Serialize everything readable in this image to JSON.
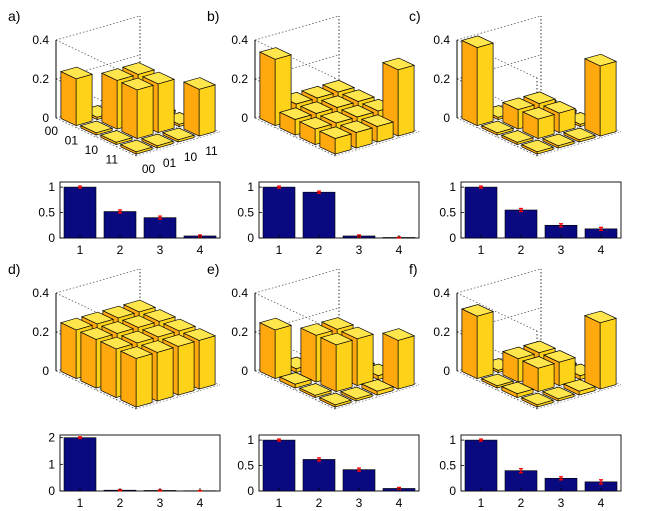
{
  "figure": {
    "description_labels_only": true
  },
  "chart_data": [
    {
      "panel": "a)",
      "bar3d": {
        "type": "bar3d",
        "zticks": [
          "0",
          "0.2",
          "0.4"
        ],
        "zlim": [
          0,
          0.4
        ],
        "row_ticks": [
          "00",
          "01",
          "10",
          "11"
        ],
        "col_ticks": [
          "00",
          "01",
          "10",
          "11"
        ],
        "matrix": [
          [
            0.24,
            0.0,
            0.0,
            0.0
          ],
          [
            0.0,
            0.25,
            0.25,
            0.0
          ],
          [
            0.0,
            0.25,
            0.25,
            0.0
          ],
          [
            0.0,
            0.0,
            0.0,
            0.24
          ]
        ]
      },
      "bar": {
        "type": "bar",
        "categories": [
          "1",
          "2",
          "3",
          "4"
        ],
        "values": [
          1.0,
          0.52,
          0.4,
          0.04
        ],
        "errors": [
          0.02,
          0.03,
          0.03,
          0.02
        ],
        "ylim": [
          0,
          1.1
        ],
        "yticks": [
          "0",
          "0.5",
          "1"
        ],
        "color": "#0a0a80",
        "error_color": "#ff0000"
      }
    },
    {
      "panel": "b)",
      "bar3d": {
        "type": "bar3d",
        "zticks": [
          "0",
          "0.2",
          "0.4"
        ],
        "zlim": [
          0,
          0.4
        ],
        "matrix": [
          [
            0.34,
            0.08,
            0.08,
            0.08
          ],
          [
            0.08,
            0.08,
            0.08,
            0.08
          ],
          [
            0.08,
            0.08,
            0.08,
            0.08
          ],
          [
            0.08,
            0.08,
            0.08,
            0.34
          ]
        ]
      },
      "bar": {
        "type": "bar",
        "categories": [
          "1",
          "2",
          "3",
          "4"
        ],
        "values": [
          1.0,
          0.9,
          0.04,
          0.01
        ],
        "errors": [
          0.02,
          0.02,
          0.02,
          0.01
        ],
        "ylim": [
          0,
          1.1
        ],
        "yticks": [
          "0",
          "0.5",
          "1"
        ],
        "color": "#0a0a80",
        "error_color": "#ff0000"
      }
    },
    {
      "panel": "c)",
      "bar3d": {
        "type": "bar3d",
        "zticks": [
          "0",
          "0.2",
          "0.4"
        ],
        "zlim": [
          0,
          0.4
        ],
        "matrix": [
          [
            0.4,
            0.0,
            0.0,
            0.0
          ],
          [
            0.0,
            0.1,
            0.1,
            0.0
          ],
          [
            0.0,
            0.1,
            0.1,
            0.0
          ],
          [
            0.0,
            0.0,
            0.0,
            0.36
          ]
        ]
      },
      "bar": {
        "type": "bar",
        "categories": [
          "1",
          "2",
          "3",
          "4"
        ],
        "values": [
          1.0,
          0.55,
          0.25,
          0.18
        ],
        "errors": [
          0.02,
          0.03,
          0.03,
          0.03
        ],
        "ylim": [
          0,
          1.1
        ],
        "yticks": [
          "0",
          "0.5",
          "1"
        ],
        "color": "#0a0a80",
        "error_color": "#ff0000"
      }
    },
    {
      "panel": "d)",
      "bar3d": {
        "type": "bar3d",
        "zticks": [
          "0",
          "0.2",
          "0.4"
        ],
        "zlim": [
          0,
          0.4
        ],
        "matrix": [
          [
            0.25,
            0.25,
            0.25,
            0.25
          ],
          [
            0.25,
            0.25,
            0.25,
            0.25
          ],
          [
            0.25,
            0.25,
            0.25,
            0.25
          ],
          [
            0.25,
            0.25,
            0.25,
            0.25
          ]
        ]
      },
      "bar": {
        "type": "bar",
        "categories": [
          "1",
          "2",
          "3",
          "4"
        ],
        "values": [
          2.0,
          0.03,
          0.02,
          0.01
        ],
        "errors": [
          0.03,
          0.02,
          0.02,
          0.01
        ],
        "ylim": [
          0,
          2.1
        ],
        "yticks": [
          "0",
          "1",
          "2"
        ],
        "color": "#0a0a80",
        "error_color": "#ff0000"
      }
    },
    {
      "panel": "e)",
      "bar3d": {
        "type": "bar3d",
        "zticks": [
          "0",
          "0.2",
          "0.4"
        ],
        "zlim": [
          0,
          0.4
        ],
        "matrix": [
          [
            0.25,
            0.02,
            0.0,
            0.0
          ],
          [
            0.02,
            0.24,
            0.24,
            0.0
          ],
          [
            0.0,
            0.24,
            0.24,
            0.02
          ],
          [
            0.0,
            0.0,
            0.02,
            0.25
          ]
        ]
      },
      "bar": {
        "type": "bar",
        "categories": [
          "1",
          "2",
          "3",
          "4"
        ],
        "values": [
          1.0,
          0.62,
          0.42,
          0.05
        ],
        "errors": [
          0.02,
          0.03,
          0.03,
          0.02
        ],
        "ylim": [
          0,
          1.1
        ],
        "yticks": [
          "0",
          "0.5",
          "1"
        ],
        "color": "#0a0a80",
        "error_color": "#ff0000"
      }
    },
    {
      "panel": "f)",
      "bar3d": {
        "type": "bar3d",
        "zticks": [
          "0",
          "0.2",
          "0.4"
        ],
        "zlim": [
          0,
          0.4
        ],
        "matrix": [
          [
            0.32,
            0.0,
            0.02,
            0.0
          ],
          [
            0.0,
            0.12,
            0.12,
            0.0
          ],
          [
            0.02,
            0.12,
            0.12,
            0.02
          ],
          [
            0.0,
            0.0,
            0.02,
            0.34
          ]
        ]
      },
      "bar": {
        "type": "bar",
        "categories": [
          "1",
          "2",
          "3",
          "4"
        ],
        "values": [
          1.0,
          0.4,
          0.25,
          0.18
        ],
        "errors": [
          0.02,
          0.04,
          0.03,
          0.04
        ],
        "ylim": [
          0,
          1.1
        ],
        "yticks": [
          "0",
          "0.5",
          "1"
        ],
        "color": "#0a0a80",
        "error_color": "#ff0000"
      }
    }
  ]
}
